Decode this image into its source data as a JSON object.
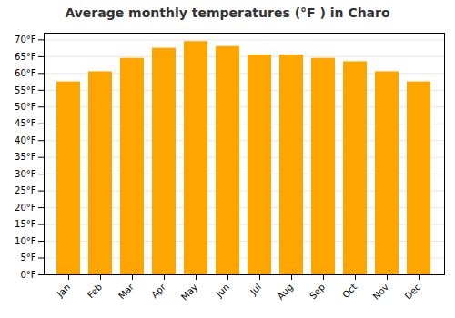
{
  "chart_data": {
    "type": "bar",
    "title": "Average monthly temperatures (°F ) in Charo",
    "categories": [
      "Jan",
      "Feb",
      "Mar",
      "Apr",
      "May",
      "Jun",
      "Jul",
      "Aug",
      "Sep",
      "Oct",
      "Nov",
      "Dec"
    ],
    "values": [
      57.5,
      60.5,
      64.5,
      67.5,
      69.5,
      68.0,
      65.5,
      65.5,
      64.5,
      63.5,
      60.5,
      57.5
    ],
    "color": "#FFA500",
    "ylim": [
      0,
      72
    ],
    "yticks": [
      {
        "value": 0,
        "label": "0°F"
      },
      {
        "value": 5,
        "label": "5°F"
      },
      {
        "value": 10,
        "label": "10°F"
      },
      {
        "value": 15,
        "label": "15°F"
      },
      {
        "value": 20,
        "label": "20°F"
      },
      {
        "value": 25,
        "label": "25°F"
      },
      {
        "value": 30,
        "label": "30°F"
      },
      {
        "value": 35,
        "label": "35°F"
      },
      {
        "value": 40,
        "label": "40°F"
      },
      {
        "value": 45,
        "label": "45°F"
      },
      {
        "value": 50,
        "label": "50°F"
      },
      {
        "value": 55,
        "label": "55°F"
      },
      {
        "value": 60,
        "label": "60°F"
      },
      {
        "value": 65,
        "label": "65°F"
      },
      {
        "value": 70,
        "label": "70°F"
      }
    ],
    "grid": true
  }
}
